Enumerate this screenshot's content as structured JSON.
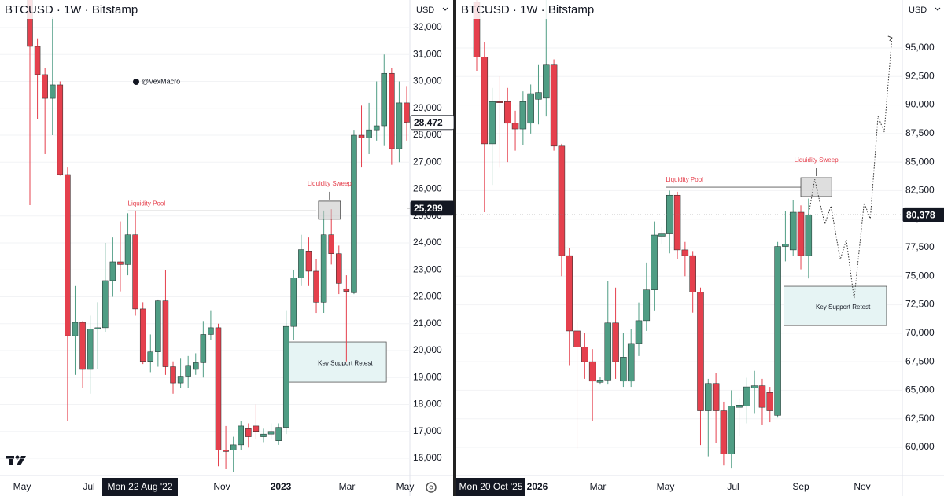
{
  "chart_data": [
    {
      "type": "candlestick",
      "title": "BTCUSD · 1W · Bitstamp",
      "currency": "USD",
      "watermark": "@VexMacro",
      "up_color": "#4f9d84",
      "down_color": "#e5404d",
      "open": [
        33200,
        31300,
        30250,
        29370,
        29870,
        26540,
        20550,
        21050,
        19300,
        20800,
        20850,
        22600,
        23300,
        23200,
        24300,
        21550,
        19600,
        19950,
        21850,
        19400,
        18800,
        19050,
        19300,
        19550,
        20600,
        20850,
        16300,
        16300,
        16500,
        17100,
        17200,
        16800,
        16900,
        16650,
        17150,
        20900,
        22700,
        23700,
        22950,
        21800,
        24300,
        23600,
        22300,
        22150,
        28000,
        27900,
        28200,
        28350,
        30300,
        27500,
        29200
      ],
      "high": [
        33800,
        31600,
        30500,
        32400,
        30000,
        26800,
        22400,
        21100,
        21300,
        21800,
        24000,
        24200,
        24800,
        25100,
        25200,
        21800,
        20600,
        21900,
        23000,
        19600,
        19700,
        19800,
        19900,
        21100,
        21500,
        21000,
        17200,
        16800,
        17400,
        17300,
        18000,
        17100,
        17300,
        17300,
        21500,
        23000,
        24300,
        24200,
        23400,
        25200,
        25250,
        23900,
        22800,
        28200,
        29100,
        29200,
        30000,
        31000,
        30500,
        30000,
        29800
      ],
      "low": [
        25400,
        28600,
        27300,
        28000,
        26500,
        17400,
        19100,
        18600,
        18400,
        19300,
        20700,
        22000,
        22200,
        22800,
        21300,
        19500,
        19200,
        19400,
        19100,
        18400,
        18600,
        18600,
        19100,
        19000,
        20400,
        15700,
        15600,
        15500,
        16300,
        16400,
        16700,
        16600,
        16700,
        16500,
        16900,
        20400,
        22400,
        22400,
        21400,
        21400,
        23200,
        22100,
        19600,
        22100,
        26800,
        27300,
        27800,
        27600,
        26900,
        27000,
        27800
      ],
      "close": [
        31300,
        30250,
        29370,
        29870,
        26540,
        20550,
        21050,
        19300,
        20800,
        20850,
        22600,
        23300,
        23200,
        24300,
        21550,
        19600,
        19950,
        21850,
        19400,
        18800,
        19050,
        19450,
        19550,
        20600,
        20850,
        16300,
        16250,
        16500,
        17200,
        16800,
        17000,
        16900,
        17000,
        17150,
        20900,
        22700,
        23750,
        22950,
        21800,
        24300,
        23600,
        22500,
        22200,
        28000,
        27900,
        28200,
        28350,
        30300,
        27500,
        29200,
        28472
      ],
      "ylim": [
        15500,
        32800
      ],
      "yticks": [
        {
          "value": 16000,
          "label": "16,000"
        },
        {
          "value": 17000,
          "label": "17,000"
        },
        {
          "value": 18000,
          "label": "18,000"
        },
        {
          "value": 19000,
          "label": "19,000"
        },
        {
          "value": 20000,
          "label": "20,000"
        },
        {
          "value": 21000,
          "label": "21,000"
        },
        {
          "value": 22000,
          "label": "22,000"
        },
        {
          "value": 23000,
          "label": "23,000"
        },
        {
          "value": 24000,
          "label": "24,000"
        },
        {
          "value": 25000,
          "label": "25,000"
        },
        {
          "value": 26000,
          "label": "26,000"
        },
        {
          "value": 27000,
          "label": "27,000"
        },
        {
          "value": 28000,
          "label": "28,000"
        },
        {
          "value": 29000,
          "label": "29,000"
        },
        {
          "value": 30000,
          "label": "30,000"
        },
        {
          "value": 31000,
          "label": "31,000"
        },
        {
          "value": 32000,
          "label": "32,000"
        }
      ],
      "time_labels": [
        "May",
        "Jul",
        "Mon 22 Aug '22",
        "Nov",
        "2023",
        "Mar",
        "May"
      ],
      "price_tags": [
        {
          "value": 28472,
          "label": "28,472"
        },
        {
          "value": 25289,
          "label": "25,289"
        }
      ],
      "liquidity_pool": {
        "text": "Liquidity Pool",
        "price": 25190
      },
      "liquidity_sweep": {
        "text": "Liquidity Sweep",
        "range": [
          25550,
          24880
        ]
      },
      "key_support": {
        "text": "Key Support Retest",
        "range": [
          20320,
          18830
        ]
      }
    },
    {
      "type": "candlestick",
      "title": "BTCUSD · 1W · Bitstamp",
      "currency": "USD",
      "up_color": "#4f9d84",
      "down_color": "#e5404d",
      "open": [
        99000,
        94200,
        86600,
        90300,
        90300,
        88400,
        87900,
        88400,
        90500,
        90600,
        93500,
        86400,
        76800,
        70200,
        68800,
        67500,
        65700,
        65900,
        70900,
        65800,
        65800,
        69100,
        71100,
        73800,
        78500,
        78700,
        82100,
        77300,
        76800,
        73600,
        63200,
        65600,
        63200,
        59400,
        63500,
        63600,
        65200,
        65400,
        64800,
        62800,
        77600,
        77300,
        80600,
        76800
      ],
      "high": [
        100000,
        95500,
        91500,
        92500,
        91500,
        89500,
        91200,
        91800,
        93500,
        100000,
        94000,
        86600,
        77500,
        71000,
        70000,
        68600,
        66200,
        74600,
        74000,
        70000,
        70400,
        72700,
        76200,
        79800,
        79300,
        82500,
        82400,
        78000,
        77200,
        74000,
        66000,
        66500,
        64000,
        65000,
        64300,
        66100,
        66700,
        66000,
        65300,
        78000,
        80700,
        81700,
        81200,
        81800
      ],
      "low": [
        93000,
        80600,
        83000,
        84500,
        85000,
        86000,
        86500,
        87500,
        88300,
        89000,
        86000,
        75000,
        67200,
        59900,
        66000,
        62300,
        65500,
        65500,
        66000,
        65300,
        65300,
        68000,
        70200,
        72000,
        77800,
        77000,
        76500,
        75000,
        71800,
        60200,
        59200,
        60400,
        58400,
        58200,
        61000,
        62100,
        63000,
        62000,
        62200,
        62600,
        76300,
        76800,
        75600,
        74800
      ],
      "close": [
        94200,
        86600,
        90300,
        90200,
        88400,
        87900,
        90300,
        91000,
        91100,
        93500,
        86400,
        76800,
        70200,
        68800,
        67500,
        65800,
        65900,
        70900,
        67500,
        67900,
        69100,
        71100,
        73800,
        78600,
        78700,
        82100,
        77300,
        76800,
        73600,
        63200,
        65600,
        63200,
        59400,
        63600,
        63700,
        65300,
        65400,
        63500,
        63200,
        77600,
        77800,
        80600,
        76800,
        80378
      ],
      "ylim": [
        57800,
        96800
      ],
      "yticks": [
        {
          "value": 60000,
          "label": "60,000"
        },
        {
          "value": 62500,
          "label": "62,500"
        },
        {
          "value": 65000,
          "label": "65,000"
        },
        {
          "value": 67500,
          "label": "67,500"
        },
        {
          "value": 70000,
          "label": "70,000"
        },
        {
          "value": 72500,
          "label": "72,500"
        },
        {
          "value": 75000,
          "label": "75,000"
        },
        {
          "value": 77500,
          "label": "77,500"
        },
        {
          "value": 80000,
          "label": "80,000"
        },
        {
          "value": 82500,
          "label": "82,500"
        },
        {
          "value": 85000,
          "label": "85,000"
        },
        {
          "value": 87500,
          "label": "87,500"
        },
        {
          "value": 90000,
          "label": "90,000"
        },
        {
          "value": 92500,
          "label": "92,500"
        },
        {
          "value": 95000,
          "label": "95,000"
        }
      ],
      "time_labels": [
        "Mon 20 Oct '25",
        "2026",
        "Mar",
        "May",
        "Jul",
        "Sep",
        "Nov"
      ],
      "price_tags": [
        {
          "value": 80378,
          "label": "80,378"
        }
      ],
      "forecast": {
        "x": [
          43,
          43.8,
          45.1,
          45.9,
          47.1,
          47.9,
          48.9,
          50.2,
          51,
          52,
          52.8,
          53.8
        ],
        "values": [
          80378,
          83490,
          79560,
          81150,
          76460,
          78180,
          73010,
          81420,
          80040,
          89000,
          87630,
          95900
        ]
      },
      "liquidity_pool": {
        "text": "Liquidity Pool",
        "price": 82800
      },
      "liquidity_sweep": {
        "text": "Liquidity Sweep",
        "range": [
          83630,
          81980
        ]
      },
      "key_support": {
        "text": "Key Support Retest",
        "range": [
          74120,
          70670
        ]
      }
    }
  ]
}
